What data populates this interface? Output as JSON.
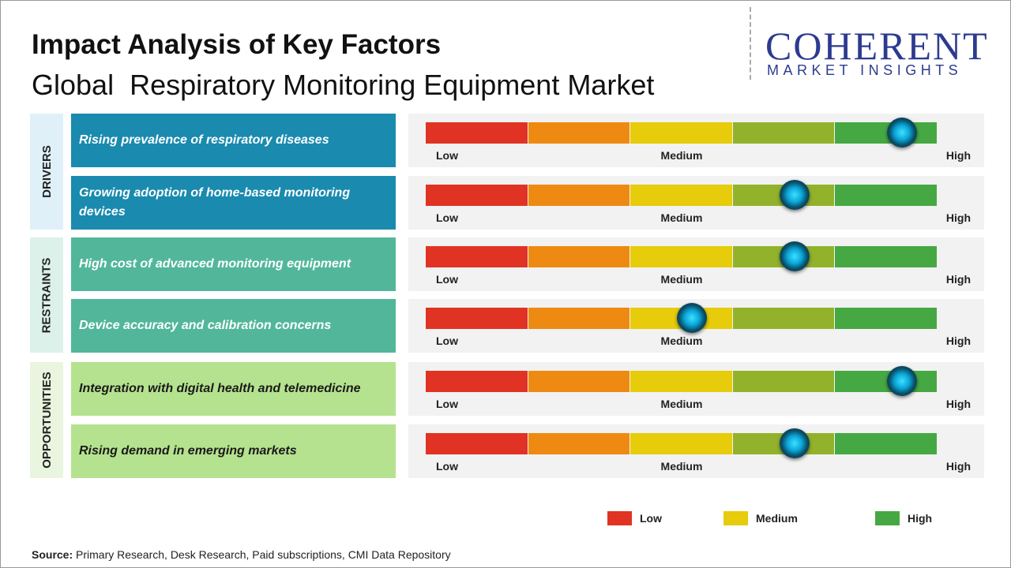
{
  "header": {
    "title": "Impact Analysis of Key Factors",
    "subtitle": "Global  Respiratory Monitoring Equipment Market"
  },
  "logo": {
    "name": "COHERENT",
    "tagline": "MARKET INSIGHTS"
  },
  "scale": {
    "range": [
      0,
      100
    ],
    "labels": [
      "Low",
      "Medium",
      "High"
    ],
    "colors": [
      "#e03323",
      "#ee8a12",
      "#e6cc0a",
      "#93b22c",
      "#46a843"
    ]
  },
  "groups": [
    {
      "label": "DRIVERS",
      "side_color": "#dff0f8",
      "box_color": "#1a8aaf",
      "text_color": "#ffffff",
      "factors": [
        {
          "text": "Rising prevalence of respiratory diseases",
          "impact": 93
        },
        {
          "text": "Growing adoption of home-based monitoring devices",
          "impact": 72
        }
      ]
    },
    {
      "label": "RESTRAINTS",
      "side_color": "#dcf1ea",
      "box_color": "#52b79a",
      "text_color": "#ffffff",
      "factors": [
        {
          "text": "High cost of advanced monitoring equipment",
          "impact": 72
        },
        {
          "text": "Device accuracy and calibration concerns",
          "impact": 52
        }
      ]
    },
    {
      "label": "OPPORTUNITIES",
      "side_color": "#e9f5de",
      "box_color": "#b5e28e",
      "text_color": "#1a1a1a",
      "factors": [
        {
          "text": "Integration with digital health and telemedicine",
          "impact": 93
        },
        {
          "text": "Rising demand in emerging markets",
          "impact": 72
        }
      ]
    }
  ],
  "legend": [
    {
      "label": "Low",
      "color": "#e03323"
    },
    {
      "label": "Medium",
      "color": "#e6cc0a"
    },
    {
      "label": "High",
      "color": "#46a843"
    }
  ],
  "source": {
    "label": "Source:",
    "text": "Primary Research, Desk Research, Paid subscriptions, CMI Data Repository"
  }
}
